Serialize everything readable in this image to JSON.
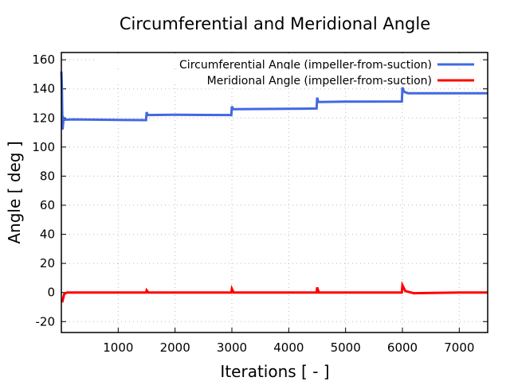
{
  "chart_data": {
    "type": "line",
    "title": "Circumferential and Meridional Angle",
    "xlabel": "Iterations [ - ]",
    "ylabel": "Angle [ deg ]",
    "xlim": [
      0,
      7500
    ],
    "ylim": [
      -27.5,
      165
    ],
    "xticks": [
      1000,
      2000,
      3000,
      4000,
      5000,
      6000,
      7000
    ],
    "yticks": [
      -20,
      0,
      20,
      40,
      60,
      80,
      100,
      120,
      140,
      160
    ],
    "grid": true,
    "legend_position": "top-right",
    "series": [
      {
        "name": "Circumferential Angle (impeller-from-suction)",
        "color": "#4169e1",
        "points": [
          [
            0,
            152
          ],
          [
            10,
            140
          ],
          [
            20,
            112
          ],
          [
            40,
            120
          ],
          [
            60,
            118.8
          ],
          [
            200,
            119
          ],
          [
            1000,
            118.6
          ],
          [
            1490,
            118.5
          ],
          [
            1500,
            124
          ],
          [
            1520,
            122
          ],
          [
            2000,
            122.2
          ],
          [
            2990,
            122
          ],
          [
            3000,
            128
          ],
          [
            3020,
            126
          ],
          [
            4000,
            126.3
          ],
          [
            4490,
            126.5
          ],
          [
            4500,
            134
          ],
          [
            4520,
            131
          ],
          [
            5000,
            131.2
          ],
          [
            5990,
            131.3
          ],
          [
            6000,
            141
          ],
          [
            6030,
            138
          ],
          [
            6100,
            137
          ],
          [
            7500,
            137
          ]
        ]
      },
      {
        "name": "Meridional Angle (impeller-from-suction)",
        "color": "#ff0000",
        "points": [
          [
            0,
            -6
          ],
          [
            20,
            -6
          ],
          [
            50,
            -1
          ],
          [
            100,
            0
          ],
          [
            1490,
            0
          ],
          [
            1500,
            1.5
          ],
          [
            1530,
            0
          ],
          [
            2990,
            0
          ],
          [
            3000,
            2.5
          ],
          [
            3030,
            0
          ],
          [
            4490,
            0
          ],
          [
            4500,
            3.5
          ],
          [
            4530,
            0
          ],
          [
            5990,
            0
          ],
          [
            6000,
            5
          ],
          [
            6050,
            1
          ],
          [
            6200,
            -0.5
          ],
          [
            6500,
            -0.3
          ],
          [
            7000,
            0
          ],
          [
            7500,
            0
          ]
        ]
      }
    ]
  }
}
